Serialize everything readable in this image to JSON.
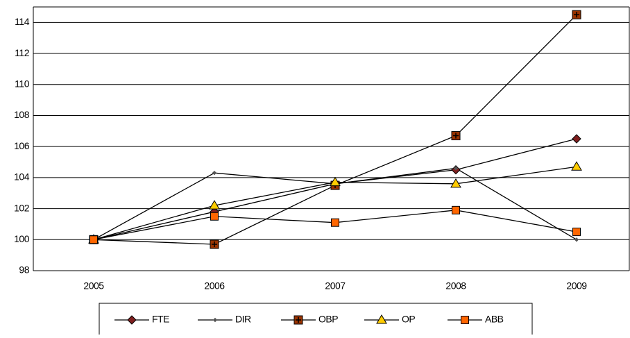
{
  "chart_data": {
    "type": "line",
    "categories": [
      "2005",
      "2006",
      "2007",
      "2008",
      "2009"
    ],
    "ylim": [
      98,
      115
    ],
    "yticks": [
      98,
      100,
      102,
      104,
      106,
      108,
      110,
      112,
      114
    ],
    "grid": true,
    "legend": "bottom",
    "series": [
      {
        "name": "FTE",
        "color": "#7f1f1f",
        "marker": "diamond",
        "values": [
          100,
          101.8,
          103.6,
          104.5,
          106.5
        ]
      },
      {
        "name": "DIR",
        "color": "#555555",
        "marker": "small-diamond",
        "values": [
          100,
          104.3,
          103.6,
          104.6,
          100
        ]
      },
      {
        "name": "OBP",
        "color": "#993300",
        "marker": "square-plus",
        "values": [
          100,
          99.7,
          103.5,
          106.7,
          114.5
        ]
      },
      {
        "name": "OP",
        "color": "#ffcc00",
        "marker": "triangle",
        "values": [
          100,
          102.2,
          103.7,
          103.6,
          104.7
        ]
      },
      {
        "name": "ABB",
        "color": "#ff6600",
        "marker": "square",
        "values": [
          100,
          101.5,
          101.1,
          101.9,
          100.5
        ]
      }
    ]
  }
}
